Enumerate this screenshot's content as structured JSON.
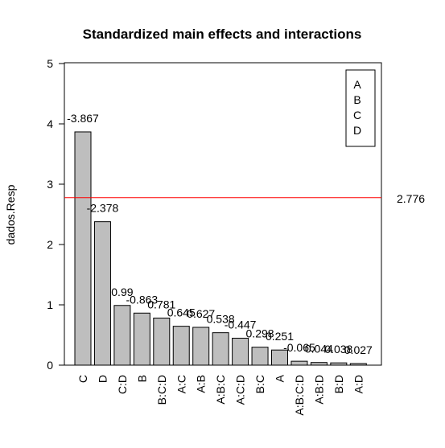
{
  "chart_data": {
    "type": "bar",
    "title": "Standardized main effects and interactions",
    "ylabel": "dados.Resp",
    "xlabel": "",
    "ylim": [
      0,
      5
    ],
    "yticks": [
      "0",
      "1",
      "2",
      "3",
      "4",
      "5"
    ],
    "categories": [
      "C",
      "D",
      "C:D",
      "B",
      "B:C:D",
      "A:C",
      "A:B",
      "A:B:C",
      "A:C:D",
      "B:C",
      "A",
      "A:B:C:D",
      "A:B:D",
      "B:D",
      "A:D"
    ],
    "values": [
      3.867,
      2.378,
      0.99,
      0.863,
      0.781,
      0.645,
      0.627,
      0.538,
      0.447,
      0.298,
      0.251,
      0.065,
      0.044,
      0.038,
      0.027
    ],
    "data_labels": [
      "-3.867",
      "-2.378",
      "0.99",
      "-0.863",
      "0.781",
      "0.645",
      "0.627",
      "0.538",
      "-0.447",
      "0.298",
      "0.251",
      "-0.065",
      "0.044",
      "0.038",
      "0.027"
    ],
    "reference_line": {
      "value": 2.776,
      "label": "2.776",
      "color": "#ff0000"
    },
    "legend": {
      "entries": [
        "A",
        "B",
        "C",
        "D"
      ],
      "placement": "top-right"
    },
    "bar_color": "#bebebe",
    "grid": false
  }
}
